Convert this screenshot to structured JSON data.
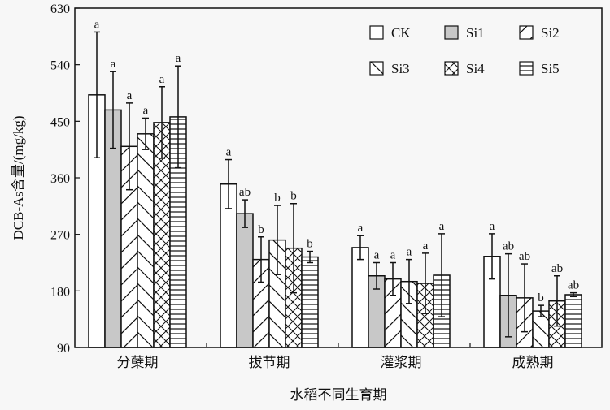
{
  "chart_data": {
    "type": "bar",
    "title": "",
    "xlabel": "水稻不同生育期",
    "ylabel": "DCB-As含量/(mg/kg)",
    "ylim": [
      90,
      630
    ],
    "yticks": [
      90,
      180,
      270,
      360,
      450,
      540,
      630
    ],
    "grid": false,
    "legend_position": "top-right",
    "categories": [
      "分蘖期",
      "拔节期",
      "灌浆期",
      "成熟期"
    ],
    "series": [
      {
        "name": "CK",
        "pattern": "white",
        "values": [
          492,
          350,
          249,
          235
        ],
        "errors": [
          100,
          39,
          19,
          36
        ],
        "letters": [
          "a",
          "a",
          "a",
          "a"
        ]
      },
      {
        "name": "Si1",
        "pattern": "gray",
        "values": [
          468,
          303,
          204,
          173
        ],
        "errors": [
          61,
          22,
          21,
          66
        ],
        "letters": [
          "a",
          "ab",
          "a",
          "ab"
        ]
      },
      {
        "name": "Si2",
        "pattern": "diagonal",
        "values": [
          410,
          230,
          199,
          169
        ],
        "errors": [
          69,
          36,
          26,
          54
        ],
        "letters": [
          "a",
          "b",
          "a",
          "ab"
        ]
      },
      {
        "name": "Si3",
        "pattern": "backdiag",
        "values": [
          430,
          261,
          195,
          148
        ],
        "errors": [
          25,
          55,
          35,
          9
        ],
        "letters": [
          "a",
          "b",
          "a",
          "b"
        ]
      },
      {
        "name": "Si4",
        "pattern": "crosshatch",
        "values": [
          448,
          248,
          192,
          164
        ],
        "errors": [
          57,
          71,
          48,
          40
        ],
        "letters": [
          "a",
          "b",
          "a",
          "ab"
        ]
      },
      {
        "name": "Si5",
        "pattern": "horizontal",
        "values": [
          457,
          234,
          205,
          174
        ],
        "errors": [
          81,
          9,
          66,
          3
        ],
        "letters": [
          "a",
          "b",
          "a",
          "ab"
        ]
      }
    ],
    "colors": {
      "axis": "#111111",
      "gray_fill": "#c8c8c8",
      "background": "#f7f7f7"
    }
  }
}
